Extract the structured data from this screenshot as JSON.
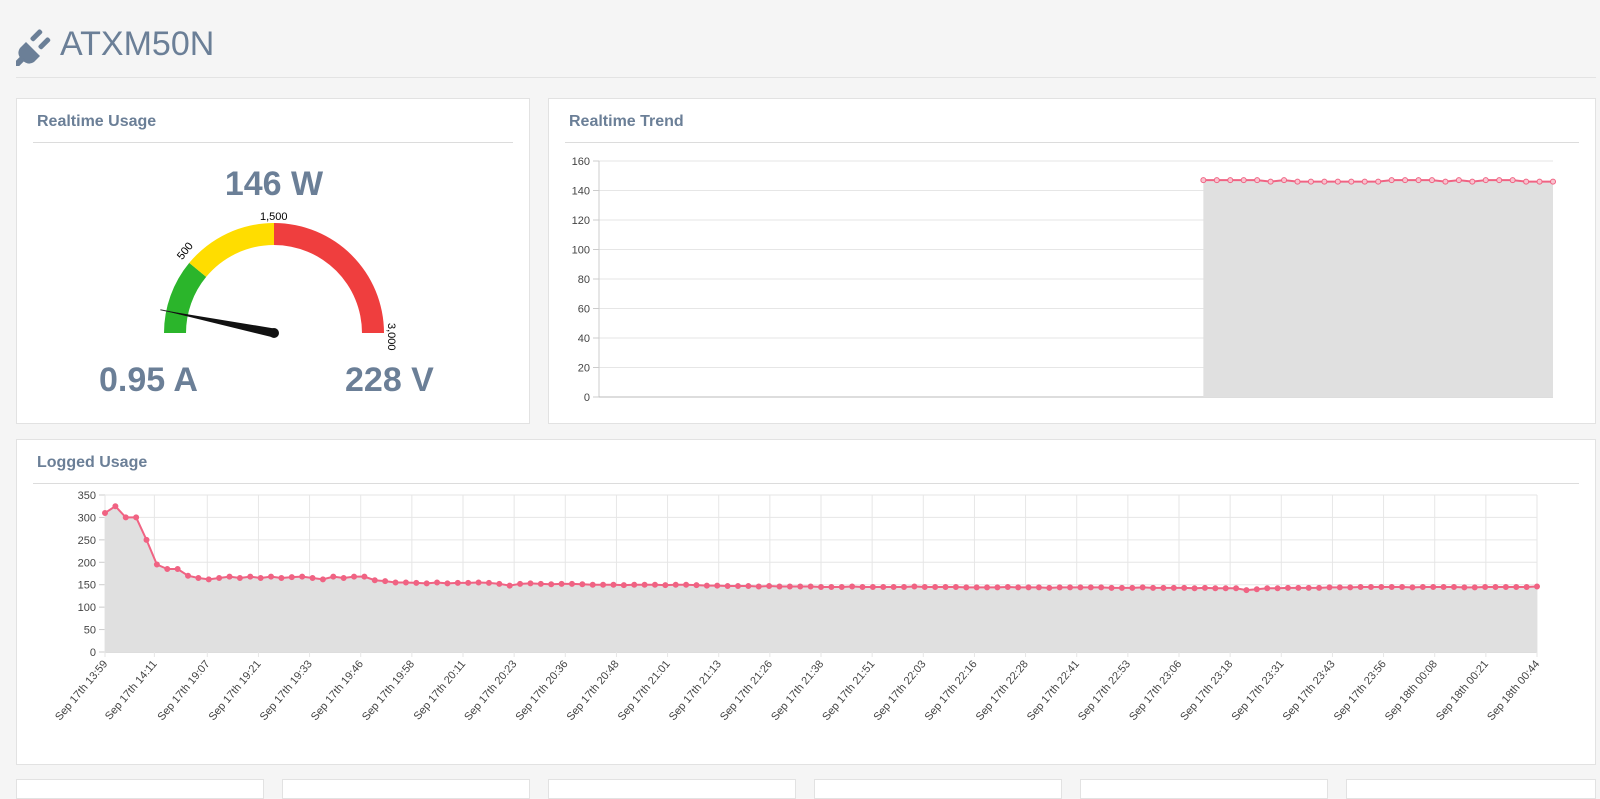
{
  "header": {
    "title": "ATXM50N",
    "icon": "plug-icon"
  },
  "realtime_usage": {
    "title": "Realtime Usage",
    "power": "146 W",
    "current": "0.95 A",
    "voltage": "228 V",
    "gauge": {
      "value": 146,
      "max": 3000,
      "ticks": [
        "500",
        "1,500",
        "3,000"
      ],
      "bands": [
        {
          "from": 0,
          "to": 500,
          "color": "#2bb52b"
        },
        {
          "from": 500,
          "to": 1500,
          "color": "#ffdd00"
        },
        {
          "from": 1500,
          "to": 3000,
          "color": "#ef3e3e"
        }
      ]
    }
  },
  "realtime_trend": {
    "title": "Realtime Trend",
    "chart_data": {
      "type": "area",
      "y_ticks": [
        "0",
        "20",
        "40",
        "60",
        "80",
        "100",
        "120",
        "140",
        "160"
      ],
      "ylim": [
        0,
        160
      ],
      "grid": true,
      "series_start_fraction": 0.6335,
      "values": [
        147,
        147,
        147,
        147,
        147,
        146,
        147,
        146,
        146,
        146,
        146,
        146,
        146,
        146,
        147,
        147,
        147,
        147,
        146,
        147,
        146,
        147,
        147,
        147,
        146,
        146,
        146
      ],
      "line_color": "#f06383",
      "fill_color": "#e0e0e0"
    }
  },
  "logged_usage": {
    "title": "Logged Usage",
    "chart_data": {
      "type": "area",
      "y_ticks": [
        "0",
        "50",
        "100",
        "150",
        "200",
        "250",
        "300",
        "350"
      ],
      "ylim": [
        0,
        350
      ],
      "grid": true,
      "x_labels": [
        "Sep 17th 13:59",
        "Sep 17th 14:11",
        "Sep 17th 19:07",
        "Sep 17th 19:21",
        "Sep 17th 19:33",
        "Sep 17th 19:46",
        "Sep 17th 19:58",
        "Sep 17th 20:11",
        "Sep 17th 20:23",
        "Sep 17th 20:36",
        "Sep 17th 20:48",
        "Sep 17th 21:01",
        "Sep 17th 21:13",
        "Sep 17th 21:26",
        "Sep 17th 21:38",
        "Sep 17th 21:51",
        "Sep 17th 22:03",
        "Sep 17th 22:16",
        "Sep 17th 22:28",
        "Sep 17th 22:41",
        "Sep 17th 22:53",
        "Sep 17th 23:06",
        "Sep 17th 23:18",
        "Sep 17th 23:31",
        "Sep 17th 23:43",
        "Sep 17th 23:56",
        "Sep 18th 00:08",
        "Sep 18th 00:21",
        "Sep 18th 00:44"
      ],
      "values": [
        310,
        325,
        300,
        300,
        250,
        195,
        185,
        185,
        170,
        165,
        162,
        165,
        168,
        165,
        168,
        165,
        168,
        165,
        167,
        168,
        165,
        162,
        168,
        165,
        168,
        168,
        160,
        158,
        155,
        155,
        154,
        153,
        155,
        153,
        154,
        154,
        155,
        154,
        152,
        148,
        152,
        153,
        152,
        151,
        152,
        152,
        151,
        150,
        150,
        150,
        149,
        150,
        150,
        150,
        149,
        150,
        150,
        149,
        148,
        148,
        147,
        147,
        147,
        146,
        147,
        146,
        146,
        146,
        146,
        145,
        145,
        145,
        146,
        145,
        145,
        145,
        145,
        145,
        146,
        145,
        145,
        145,
        145,
        144,
        144,
        144,
        144,
        145,
        144,
        144,
        144,
        143,
        144,
        144,
        144,
        144,
        144,
        143,
        143,
        143,
        144,
        143,
        143,
        143,
        143,
        142,
        143,
        142,
        142,
        142,
        138,
        140,
        142,
        142,
        143,
        143,
        143,
        143,
        144,
        144,
        144,
        145,
        145,
        145,
        145,
        145,
        144,
        145,
        145,
        145,
        145,
        144,
        144,
        145,
        145,
        145,
        145,
        145,
        146
      ],
      "line_color": "#f06383",
      "fill_color": "#e0e0e0"
    }
  }
}
